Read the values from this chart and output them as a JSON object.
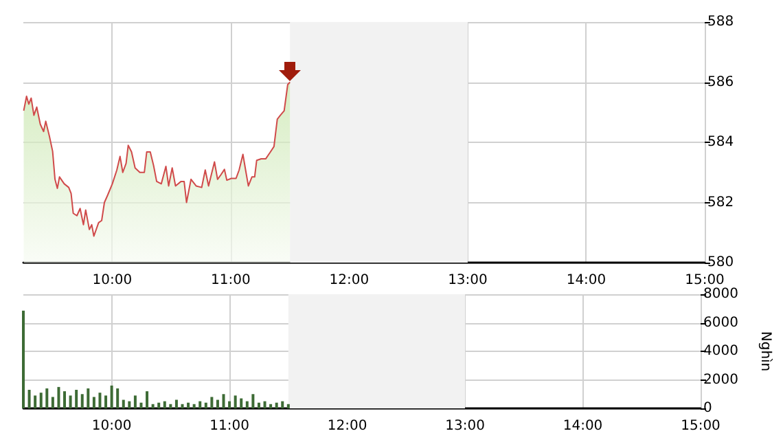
{
  "chart_data": [
    {
      "type": "area",
      "grid": true,
      "marker": "none",
      "line_style": "solid",
      "xlim": [
        9.25,
        15
      ],
      "ylim": [
        580,
        588
      ],
      "xticks": [
        {
          "value": 10,
          "label": "10:00"
        },
        {
          "value": 11,
          "label": "11:00"
        },
        {
          "value": 12,
          "label": "12:00"
        },
        {
          "value": 13,
          "label": "13:00"
        },
        {
          "value": 14,
          "label": "14:00"
        },
        {
          "value": 15,
          "label": "15:00"
        }
      ],
      "yticks": [
        580,
        582,
        584,
        586,
        588
      ],
      "bands": [
        {
          "axis": "x",
          "from": 11.5,
          "to": 13,
          "color": "#f2f2f2"
        }
      ],
      "series": [
        {
          "color": "#d04a4a",
          "x": [
            9.253,
            9.277,
            9.296,
            9.316,
            9.339,
            9.363,
            9.393,
            9.421,
            9.439,
            9.47,
            9.497,
            9.517,
            9.537,
            9.555,
            9.595,
            9.633,
            9.653,
            9.671,
            9.702,
            9.729,
            9.757,
            9.776,
            9.807,
            9.827,
            9.845,
            9.885,
            9.911,
            9.934,
            9.961,
            10.001,
            10.039,
            10.066,
            10.089,
            10.117,
            10.135,
            10.163,
            10.193,
            10.233,
            10.271,
            10.291,
            10.321,
            10.349,
            10.375,
            10.414,
            10.453,
            10.476,
            10.506,
            10.534,
            10.581,
            10.607,
            10.627,
            10.665,
            10.708,
            10.755,
            10.785,
            10.813,
            10.863,
            10.889,
            10.917,
            10.947,
            10.967,
            11.005,
            11.045,
            11.071,
            11.103,
            11.129,
            11.149,
            11.179,
            11.202,
            11.219,
            11.257,
            11.295,
            11.335,
            11.365,
            11.393,
            11.419,
            11.451,
            11.481,
            11.5
          ],
          "values": [
            585.05,
            585.53,
            585.27,
            585.47,
            584.9,
            585.17,
            584.6,
            584.36,
            584.7,
            584.2,
            583.7,
            582.77,
            582.47,
            582.85,
            582.62,
            582.5,
            582.3,
            581.64,
            581.56,
            581.8,
            581.26,
            581.75,
            581.1,
            581.26,
            580.88,
            581.33,
            581.4,
            582.0,
            582.24,
            582.62,
            583.08,
            583.53,
            583.0,
            583.3,
            583.9,
            583.68,
            583.15,
            583.0,
            583.0,
            583.68,
            583.68,
            583.23,
            582.7,
            582.62,
            583.2,
            582.55,
            583.15,
            582.55,
            582.7,
            582.7,
            582.0,
            582.77,
            582.55,
            582.5,
            583.08,
            582.55,
            583.35,
            582.77,
            582.92,
            583.1,
            582.74,
            582.8,
            582.8,
            583.08,
            583.6,
            583.0,
            582.55,
            582.85,
            582.85,
            583.4,
            583.45,
            583.45,
            583.68,
            583.86,
            584.77,
            584.9,
            585.05,
            585.92,
            586.0
          ]
        }
      ]
    },
    {
      "type": "bar",
      "grid": true,
      "ylabel": "Nghìn",
      "xlim": [
        9.25,
        15
      ],
      "ylim": [
        0,
        8000
      ],
      "xticks": [
        {
          "value": 10,
          "label": "10:00"
        },
        {
          "value": 11,
          "label": "11:00"
        },
        {
          "value": 12,
          "label": "12:00"
        },
        {
          "value": 13,
          "label": "13:00"
        },
        {
          "value": 14,
          "label": "14:00"
        },
        {
          "value": 15,
          "label": "15:00"
        }
      ],
      "yticks": [
        0,
        2000,
        4000,
        6000,
        8000
      ],
      "bands": [
        {
          "axis": "x",
          "from": 11.5,
          "to": 13,
          "color": "#f2f2f2"
        }
      ],
      "series": [
        {
          "color": "#3d6b35",
          "x": [
            9.25,
            9.3,
            9.35,
            9.4,
            9.45,
            9.5,
            9.55,
            9.6,
            9.65,
            9.7,
            9.75,
            9.8,
            9.85,
            9.9,
            9.95,
            10.0,
            10.05,
            10.1,
            10.15,
            10.2,
            10.25,
            10.3,
            10.35,
            10.4,
            10.45,
            10.5,
            10.55,
            10.6,
            10.65,
            10.7,
            10.75,
            10.8,
            10.85,
            10.9,
            10.95,
            11.0,
            11.05,
            11.1,
            11.15,
            11.2,
            11.25,
            11.3,
            11.35,
            11.4,
            11.45,
            11.5
          ],
          "values": [
            6850,
            1300,
            900,
            1100,
            1400,
            800,
            1500,
            1200,
            900,
            1300,
            1000,
            1400,
            800,
            1100,
            900,
            1600,
            1400,
            600,
            500,
            900,
            400,
            1200,
            300,
            400,
            500,
            300,
            600,
            300,
            400,
            300,
            500,
            400,
            800,
            600,
            1000,
            500,
            900,
            700,
            500,
            1000,
            400,
            500,
            300,
            400,
            500,
            300
          ]
        }
      ]
    }
  ]
}
